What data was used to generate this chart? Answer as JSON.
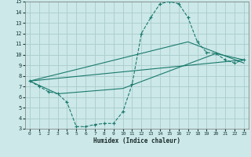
{
  "xlabel": "Humidex (Indice chaleur)",
  "background_color": "#cce8e8",
  "grid_color": "#aacccc",
  "line_color": "#1a7a6e",
  "xlim": [
    -0.5,
    23.5
  ],
  "ylim": [
    3,
    15
  ],
  "xticks": [
    0,
    1,
    2,
    3,
    4,
    5,
    6,
    7,
    8,
    9,
    10,
    11,
    12,
    13,
    14,
    15,
    16,
    17,
    18,
    19,
    20,
    21,
    22,
    23
  ],
  "yticks": [
    3,
    4,
    5,
    6,
    7,
    8,
    9,
    10,
    11,
    12,
    13,
    14,
    15
  ],
  "series": [
    {
      "x": [
        0,
        1,
        2,
        3,
        4,
        5,
        6,
        7,
        8,
        9,
        10,
        11,
        12,
        13,
        14,
        15,
        16,
        17,
        18,
        19,
        20,
        21,
        22,
        23
      ],
      "y": [
        7.5,
        7.0,
        6.5,
        6.3,
        5.5,
        3.2,
        3.2,
        3.4,
        3.5,
        3.5,
        4.6,
        7.2,
        12.0,
        13.5,
        14.8,
        15.0,
        14.8,
        13.5,
        11.2,
        10.2,
        10.1,
        9.5,
        9.2,
        9.5
      ],
      "linestyle": "--",
      "marker": "+"
    },
    {
      "x": [
        0,
        23
      ],
      "y": [
        7.5,
        9.5
      ],
      "linestyle": "-",
      "marker": null
    },
    {
      "x": [
        0,
        17,
        23
      ],
      "y": [
        7.5,
        11.2,
        9.2
      ],
      "linestyle": "-",
      "marker": null
    },
    {
      "x": [
        0,
        3,
        10,
        20,
        23
      ],
      "y": [
        7.5,
        6.3,
        6.8,
        10.1,
        9.5
      ],
      "linestyle": "-",
      "marker": null
    }
  ]
}
